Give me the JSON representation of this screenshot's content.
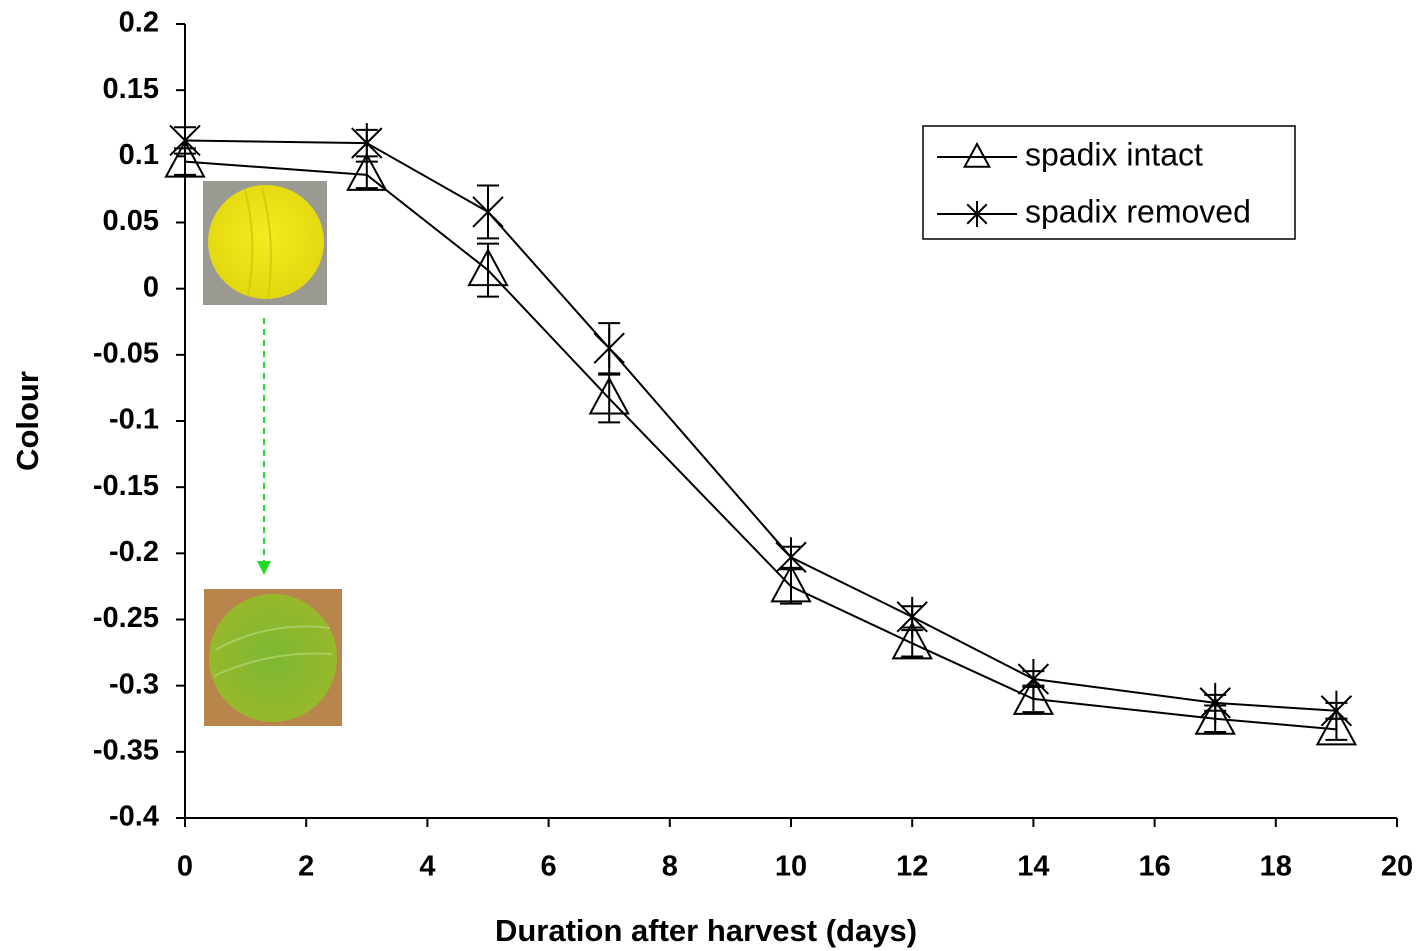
{
  "chart_data": {
    "type": "line",
    "x_label": "Duration after harvest (days)",
    "y_label": "Colour",
    "x": [
      0,
      3,
      5,
      7,
      10,
      12,
      14,
      17,
      19
    ],
    "series": [
      {
        "name": "spadix intact",
        "marker": "triangle",
        "color": "#000000",
        "values": [
          0.096,
          0.086,
          0.014,
          -0.083,
          -0.225,
          -0.268,
          -0.31,
          -0.325,
          -0.333
        ],
        "errors": [
          0.01,
          0.01,
          0.02,
          0.018,
          0.013,
          0.01,
          0.01,
          0.01,
          0.008
        ]
      },
      {
        "name": "spadix removed",
        "marker": "asterisk",
        "color": "#000000",
        "values": [
          0.112,
          0.11,
          0.058,
          -0.045,
          -0.203,
          -0.248,
          -0.295,
          -0.313,
          -0.319
        ],
        "errors": [
          0.01,
          0.01,
          0.02,
          0.019,
          0.008,
          0.008,
          0.006,
          0.006,
          0.006
        ]
      }
    ],
    "xlim": [
      0,
      20
    ],
    "xticks": [
      0,
      2,
      4,
      6,
      8,
      10,
      12,
      14,
      16,
      18,
      20
    ],
    "ylim": [
      -0.4,
      0.2
    ],
    "yticks": [
      0.2,
      0.15,
      0.1,
      0.05,
      0,
      -0.05,
      -0.1,
      -0.15,
      -0.2,
      -0.25,
      -0.3,
      -0.35,
      -0.4
    ],
    "legend": "upper right"
  }
}
